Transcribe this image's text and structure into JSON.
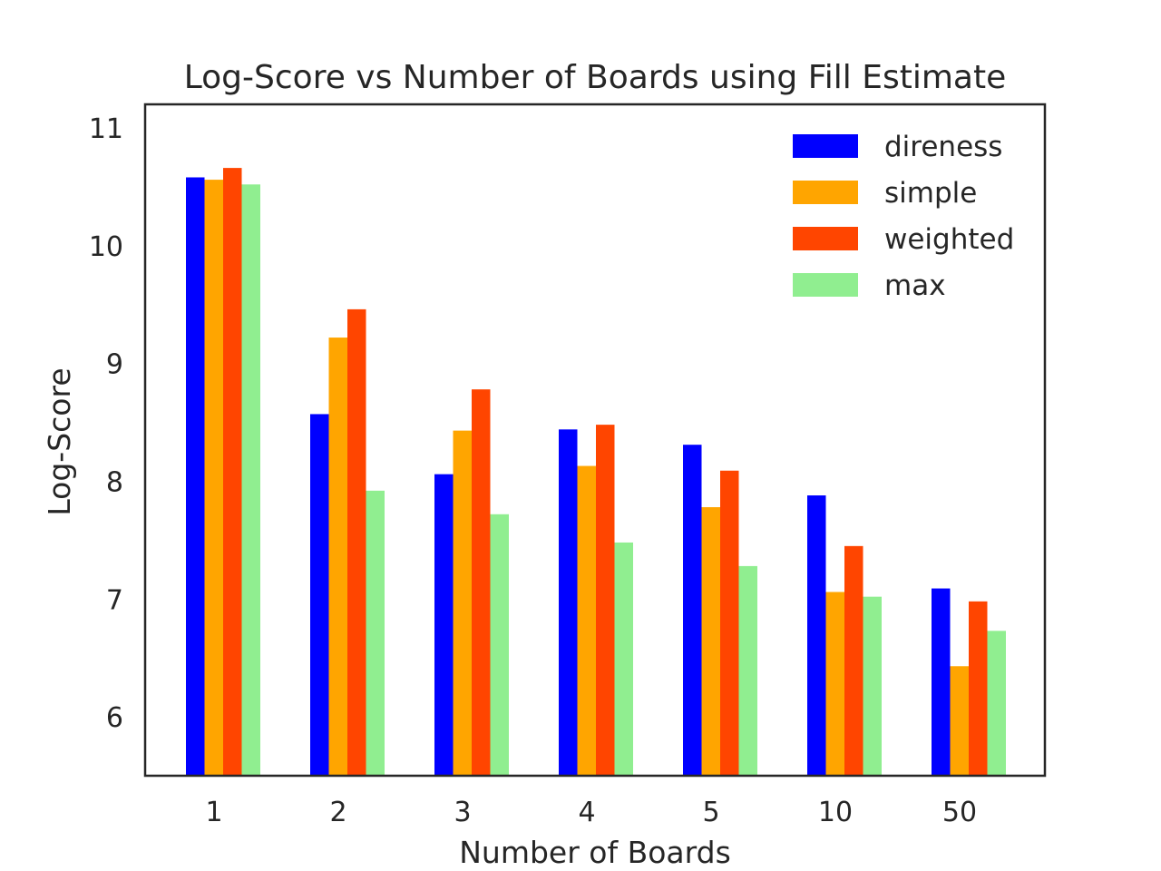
{
  "chart_data": {
    "type": "bar",
    "title": "Log-Score vs Number of Boards using Fill Estimate",
    "xlabel": "Number of Boards",
    "ylabel": "Log-Score",
    "categories": [
      "1",
      "2",
      "3",
      "4",
      "5",
      "10",
      "50"
    ],
    "series": [
      {
        "name": "direness",
        "color": "#0000ff",
        "values": [
          10.58,
          8.57,
          8.06,
          8.44,
          8.31,
          7.88,
          7.09
        ]
      },
      {
        "name": "simple",
        "color": "#ffa500",
        "values": [
          10.56,
          9.22,
          8.43,
          8.13,
          7.78,
          7.06,
          6.43
        ]
      },
      {
        "name": "weighted",
        "color": "#ff4500",
        "values": [
          10.66,
          9.46,
          8.78,
          8.48,
          8.09,
          7.45,
          6.98
        ]
      },
      {
        "name": "max",
        "color": "#90ee90",
        "values": [
          10.52,
          7.92,
          7.72,
          7.48,
          7.28,
          7.02,
          6.73
        ]
      }
    ],
    "ylim": [
      5.5,
      11.2
    ],
    "yticks": [
      6,
      7,
      8,
      9,
      10,
      11
    ],
    "grid": false,
    "legend_position": "top-right"
  }
}
